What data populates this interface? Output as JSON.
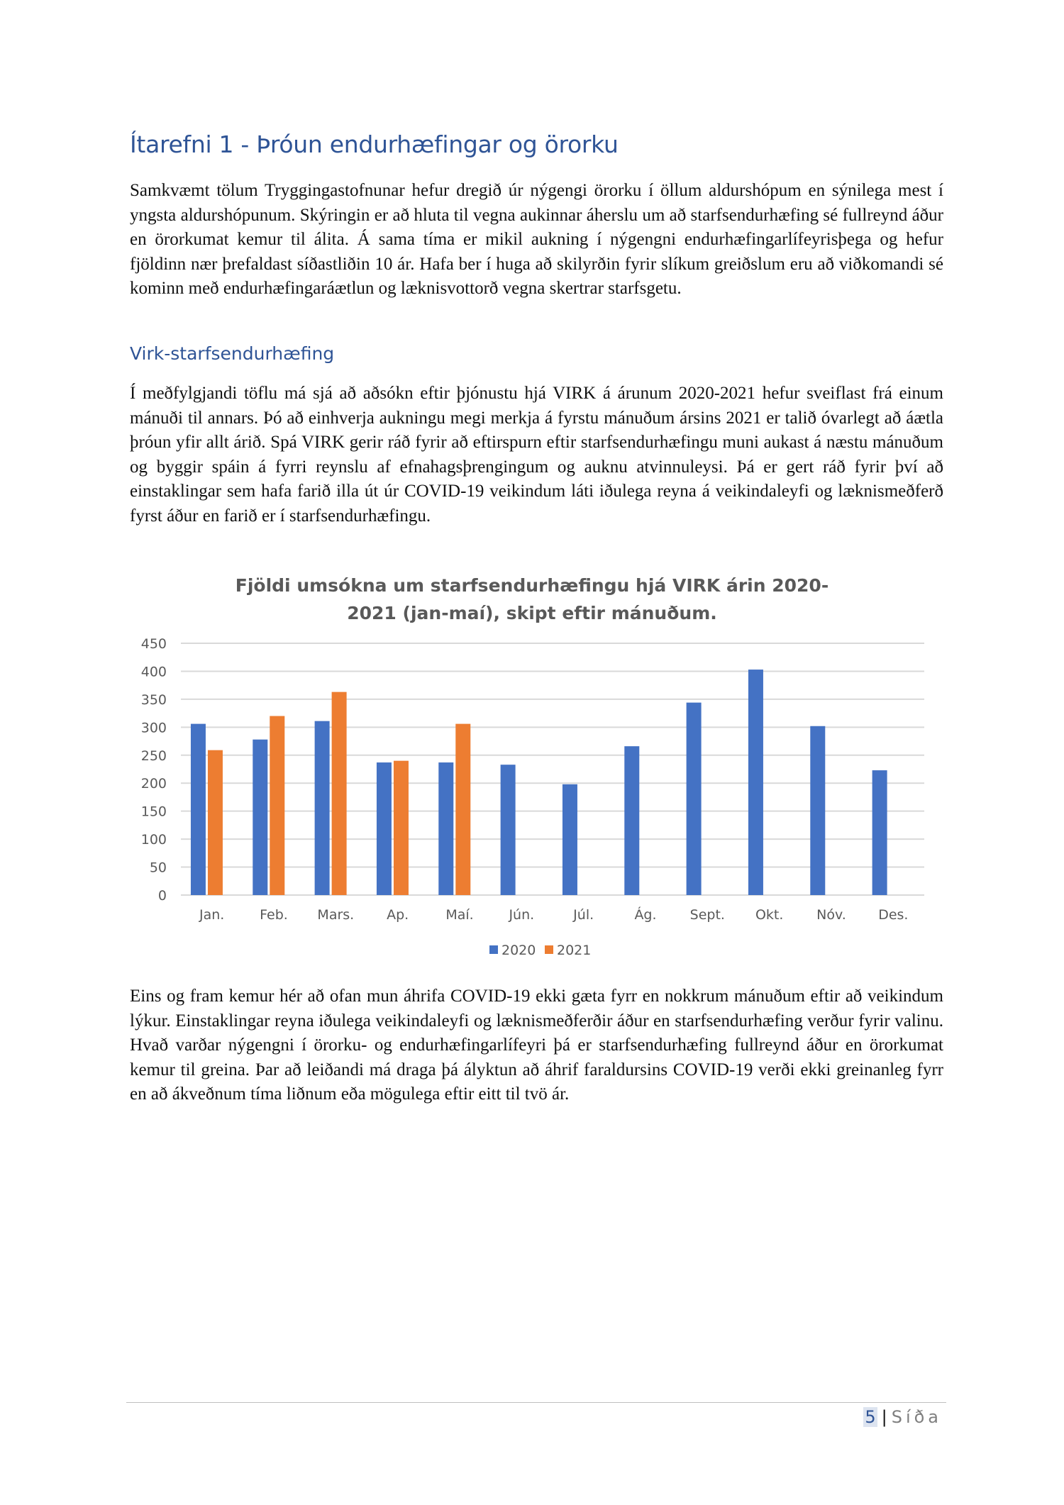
{
  "heading": "Ítarefni 1 - Þróun endurhæfingar og örorku",
  "paragraph1": "Samkvæmt tölum Tryggingastofnunar hefur dregið úr nýgengi örorku í öllum aldurshópum en sýnilega mest í yngsta aldurshópunum. Skýringin er að hluta til vegna aukinnar áherslu um að starfsendurhæfing sé fullreynd áður en örorkumat kemur til álita. Á sama tíma er mikil aukning í nýgengni endurhæfingarlífeyrisþega og hefur fjöldinn nær þrefaldast síðastliðin 10 ár. Hafa ber í huga að skilyrðin fyrir slíkum greiðslum eru að viðkomandi sé kominn með endurhæfingaráætlun og læknisvottorð vegna skertrar starfsgetu.",
  "subheading": "Virk-starfsendurhæfing",
  "paragraph2": "Í meðfylgjandi töflu má sjá að aðsókn eftir þjónustu hjá VIRK á árunum 2020-2021 hefur sveiflast frá einum mánuði til annars. Þó að einhverja aukningu megi merkja á fyrstu mánuðum ársins 2021 er talið óvarlegt að áætla þróun yfir allt árið. Spá VIRK gerir ráð fyrir að eftirspurn eftir starfsendurhæfingu muni aukast á næstu mánuðum og byggir spáin á fyrri reynslu af efnahagsþrengingum og auknu atvinnuleysi. Þá er gert ráð fyrir því að einstaklingar sem hafa farið illa út úr COVID-19 veikindum láti iðulega reyna á veikindaleyfi og læknismeðferð fyrst áður en farið er í starfsendurhæfingu.",
  "paragraph3": "Eins og fram kemur hér að ofan mun áhrifa COVID-19 ekki gæta fyrr en nokkrum mánuðum eftir að veikindum lýkur. Einstaklingar reyna iðulega veikindaleyfi og læknismeðferðir áður en starfsendurhæfing verður fyrir valinu. Hvað varðar nýgengni í örorku- og endurhæfingarlífeyri þá er starfsendurhæfing fullreynd áður en örorkumat kemur til greina. Þar að leiðandi má draga þá ályktun að áhrif faraldursins COVID-19 verði ekki greinanleg fyrr en að ákveðnum tíma liðnum eða mögulega eftir eitt til tvö ár.",
  "footer": {
    "page_number": "5",
    "separator": "|",
    "label": "Síða"
  },
  "chart_data": {
    "type": "bar",
    "title": "Fjöldi umsókna um starfsendurhæfingu hjá VIRK árin 2020-2021 (jan-maí), skipt eftir mánuðum.",
    "categories": [
      "Jan.",
      "Feb.",
      "Mars.",
      "Ap.",
      "Maí.",
      "Jún.",
      "Júl.",
      "Ág.",
      "Sept.",
      "Okt.",
      "Nóv.",
      "Des."
    ],
    "series": [
      {
        "name": "2020",
        "color": "#4472c4",
        "values": [
          306,
          278,
          311,
          237,
          237,
          233,
          198,
          266,
          344,
          403,
          302,
          223
        ]
      },
      {
        "name": "2021",
        "color": "#ed7d31",
        "values": [
          259,
          320,
          363,
          240,
          306,
          null,
          null,
          null,
          null,
          null,
          null,
          null
        ]
      }
    ],
    "ylim": [
      0,
      450
    ],
    "yticks": [
      0,
      50,
      100,
      150,
      200,
      250,
      300,
      350,
      400,
      450
    ],
    "grid": true,
    "legend": "bottom"
  }
}
